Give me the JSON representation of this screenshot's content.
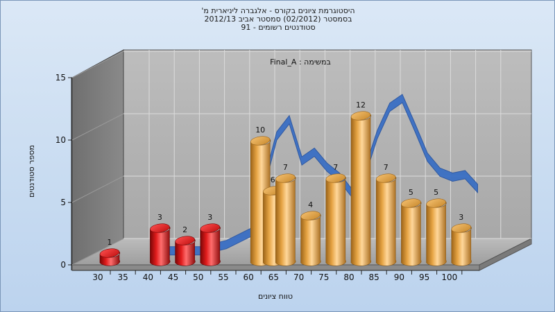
{
  "header": {
    "line1": "היסטוגרמת ציונים בקורס - אלגברה ליניארית מ'",
    "line2": "בסמסטר  (02/2012)  סמסטר אביב 2012/13",
    "line3": "סטודנטים רשומים - 91"
  },
  "chart_data": {
    "type": "bar",
    "title": "במשימה : Final_A",
    "xlabel": "טווח ציונים",
    "ylabel": "מספר סטודנטים",
    "x_ticks": [
      "30",
      "35",
      "40",
      "45",
      "50",
      "55",
      "60",
      "65",
      "70",
      "75",
      "80",
      "85",
      "90",
      "95",
      "100"
    ],
    "categories": [
      "30",
      "40",
      "45",
      "50",
      "60",
      "62.5",
      "65",
      "70",
      "75",
      "80",
      "85",
      "90",
      "95",
      "100"
    ],
    "values": [
      1,
      3,
      2,
      3,
      10,
      6,
      7,
      4,
      7,
      12,
      7,
      5,
      5,
      3
    ],
    "bar_colors": [
      "#d81818",
      "#d81818",
      "#d81818",
      "#d81818",
      "#e0a040",
      "#e0a040",
      "#e0a040",
      "#e0a040",
      "#e0a040",
      "#e0a040",
      "#e0a040",
      "#e0a040",
      "#e0a040",
      "#e0a040"
    ],
    "ylim": [
      0,
      15
    ],
    "y_ticks": [
      0,
      5,
      10,
      15
    ],
    "grid": true,
    "curve": {
      "type": "area-ribbon",
      "color": "#3a6fc4",
      "x": [
        35,
        40,
        45,
        50,
        55,
        60,
        62.5,
        65,
        67.5,
        70,
        72.5,
        75,
        77.5,
        80,
        82.5,
        85,
        87.5,
        90,
        92.5,
        95,
        97.5,
        100
      ],
      "y": [
        0.3,
        0.3,
        0.3,
        0.8,
        1.8,
        9.5,
        10.8,
        7.5,
        8.2,
        7.0,
        6.2,
        4.9,
        6.5,
        9.6,
        11.8,
        12.5,
        10.2,
        7.8,
        6.6,
        6.2,
        6.4,
        5.3
      ]
    }
  }
}
